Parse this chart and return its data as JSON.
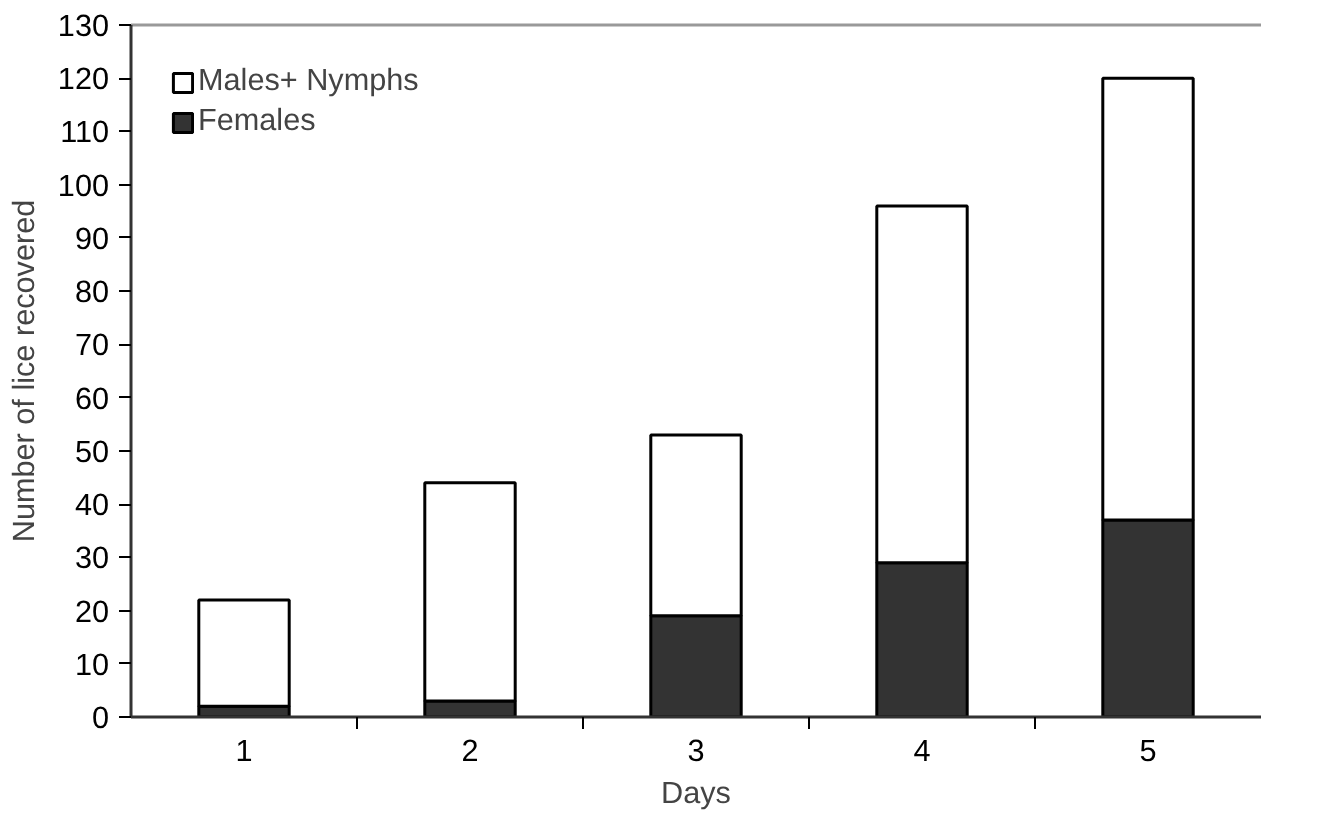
{
  "chart_data": {
    "type": "bar",
    "stacked": true,
    "xlabel": "Days",
    "ylabel": "Number of lice recovered",
    "categories": [
      "1",
      "2",
      "3",
      "4",
      "5"
    ],
    "series": [
      {
        "name": "Females",
        "color": "#333333",
        "values": [
          2,
          3,
          19,
          29,
          37
        ]
      },
      {
        "name": "Males+ Nymphs",
        "color": "#ffffff",
        "values": [
          20,
          41,
          34,
          67,
          83
        ]
      }
    ],
    "ylim": [
      0,
      130
    ],
    "yticks": [
      0,
      10,
      20,
      30,
      40,
      50,
      60,
      70,
      80,
      90,
      100,
      110,
      120,
      130
    ],
    "grid": false,
    "legend": "top left"
  }
}
